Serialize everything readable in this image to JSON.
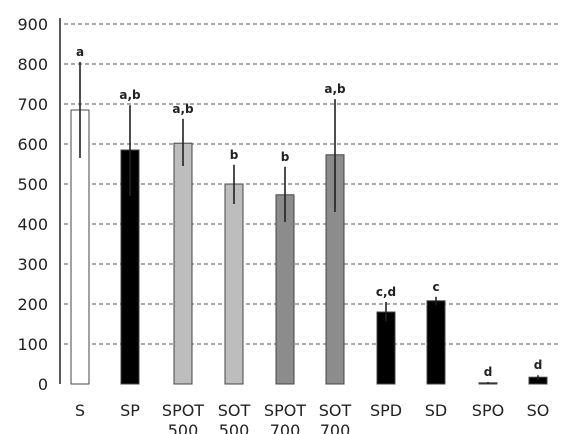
{
  "chart_data": {
    "type": "bar",
    "title": "",
    "xlabel": "",
    "ylabel": "",
    "ylim": [
      0,
      900
    ],
    "yticks": [
      0,
      100,
      200,
      300,
      400,
      500,
      600,
      700,
      800,
      900
    ],
    "grid": true,
    "categories": [
      [
        "S"
      ],
      [
        "SP"
      ],
      [
        "SPOT",
        "500"
      ],
      [
        "SOT",
        "500"
      ],
      [
        "SPOT",
        "700"
      ],
      [
        "SOT",
        "700"
      ],
      [
        "SPD"
      ],
      [
        "SD"
      ],
      [
        "SPO"
      ],
      [
        "SO"
      ]
    ],
    "values": [
      685,
      585,
      602,
      500,
      473,
      573,
      180,
      208,
      3,
      17
    ],
    "error_low": [
      565,
      470,
      545,
      450,
      405,
      430,
      158,
      198,
      0,
      10
    ],
    "error_high": [
      805,
      697,
      663,
      548,
      543,
      712,
      205,
      218,
      5,
      22
    ],
    "significance": [
      "a",
      "a,b",
      "a,b",
      "b",
      "b",
      "a,b",
      "c,d",
      "c",
      "d",
      "d"
    ],
    "bar_colors": [
      "#ffffff",
      "#000000",
      "#bdbdbd",
      "#bdbdbd",
      "#8c8c8c",
      "#8c8c8c",
      "#000000",
      "#000000",
      "#000000",
      "#000000"
    ],
    "bar_edge_color": "#444444"
  }
}
